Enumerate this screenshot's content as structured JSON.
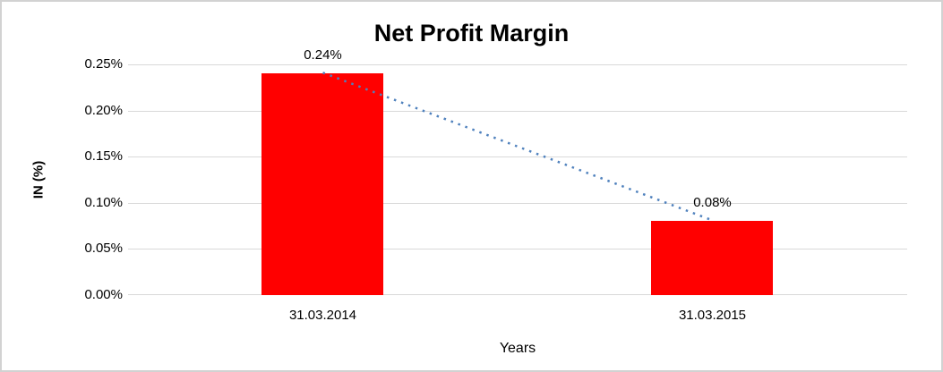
{
  "chart_data": {
    "type": "bar",
    "title": "Net Profit Margin",
    "xlabel": "Years",
    "ylabel": "IN (%)",
    "categories": [
      "31.03.2014",
      "31.03.2015"
    ],
    "values": [
      0.24,
      0.08
    ],
    "data_labels": [
      "0.24%",
      "0.08%"
    ],
    "ylim": [
      0,
      0.25
    ],
    "ytick_step": 0.05,
    "ytick_labels": [
      "0.25%",
      "0.20%",
      "0.15%",
      "0.10%",
      "0.05%",
      "0.00%"
    ],
    "grid": true,
    "legend": false,
    "bar_color": "#FF0000",
    "trendline": {
      "type": "linear",
      "style": "dotted",
      "color": "#4F81BD"
    }
  },
  "colors": {
    "bar": "#FF0000",
    "trendline": "#4F81BD",
    "gridline": "#D9D9D9",
    "frame_border": "#D2D2D2",
    "background": "#FFFFFF",
    "text": "#000000"
  }
}
